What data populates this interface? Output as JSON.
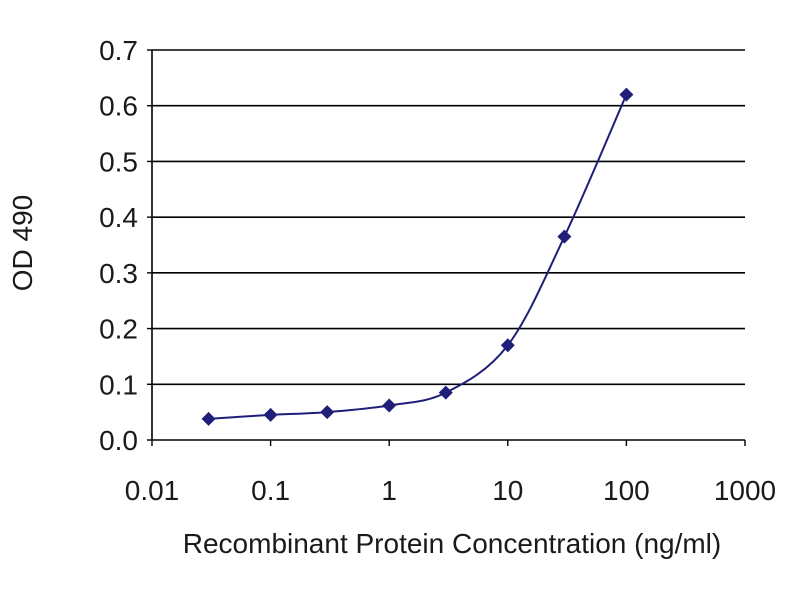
{
  "chart_data": {
    "type": "line",
    "title": "",
    "xlabel": "Recombinant Protein Concentration (ng/ml)",
    "ylabel": "OD 490",
    "x_scale": "log",
    "xlim": [
      0.01,
      1000
    ],
    "ylim": [
      0,
      0.7
    ],
    "x_tick_labels": [
      "0.01",
      "0.1",
      "1",
      "10",
      "100",
      "1000"
    ],
    "x_tick_values": [
      0.01,
      0.1,
      1,
      10,
      100,
      1000
    ],
    "y_tick_labels": [
      "0.0",
      "0.1",
      "0.2",
      "0.3",
      "0.4",
      "0.5",
      "0.6",
      "0.7"
    ],
    "y_tick_values": [
      0,
      0.1,
      0.2,
      0.3,
      0.4,
      0.5,
      0.6,
      0.7
    ],
    "grid": "horizontal",
    "legend": "none",
    "series": [
      {
        "marker": "diamond",
        "color": "#1f1f7a",
        "x": [
          0.03,
          0.1,
          0.3,
          1,
          3,
          10,
          30,
          100
        ],
        "y": [
          0.038,
          0.045,
          0.05,
          0.062,
          0.085,
          0.17,
          0.365,
          0.62
        ]
      }
    ]
  }
}
